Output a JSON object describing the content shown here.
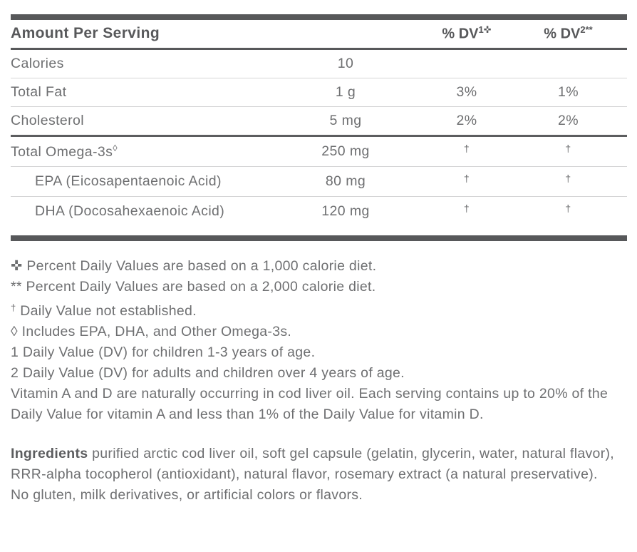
{
  "colors": {
    "bar": "#57585a",
    "heading_text": "#57585a",
    "body_text": "#6e6f71",
    "thin_rule": "#d4d4d5"
  },
  "table": {
    "header": {
      "amount_label": "Amount Per Serving",
      "dv1_label": "% DV",
      "dv1_sup": "1✜",
      "dv2_label": "% DV",
      "dv2_sup": "2**"
    },
    "rows": [
      {
        "name": "Calories",
        "sup": "",
        "amount": "10",
        "dv1": "",
        "dv2": "",
        "indent": false,
        "section": false
      },
      {
        "name": "Total Fat",
        "sup": "",
        "amount": "1 g",
        "dv1": "3%",
        "dv2": "1%",
        "indent": false,
        "section": false
      },
      {
        "name": "Cholesterol",
        "sup": "",
        "amount": "5 mg",
        "dv1": "2%",
        "dv2": "2%",
        "indent": false,
        "section": false
      },
      {
        "name": "Total Omega-3s",
        "sup": "◊",
        "amount": "250 mg",
        "dv1": "†",
        "dv2": "†",
        "indent": false,
        "section": true
      },
      {
        "name": "EPA (Eicosapentaenoic Acid)",
        "sup": "",
        "amount": "80 mg",
        "dv1": "†",
        "dv2": "†",
        "indent": true,
        "section": false
      },
      {
        "name": "DHA (Docosahexaenoic Acid)",
        "sup": "",
        "amount": "120 mg",
        "dv1": "†",
        "dv2": "†",
        "indent": true,
        "section": false
      }
    ],
    "dagger_symbol": "†"
  },
  "footnotes": [
    {
      "marker": "✜",
      "raised": false,
      "text": "Percent Daily Values are based on a 1,000 calorie diet."
    },
    {
      "marker": "**",
      "raised": false,
      "text": "Percent Daily Values are based on a 2,000 calorie diet."
    },
    {
      "marker": "†",
      "raised": true,
      "text": "Daily Value not established."
    },
    {
      "marker": "◊",
      "raised": false,
      "text": "Includes EPA, DHA, and Other Omega-3s."
    },
    {
      "marker": "1",
      "raised": false,
      "text": "Daily Value (DV) for children 1-3 years of age."
    },
    {
      "marker": "2",
      "raised": false,
      "text": "Daily Value (DV) for adults and children over 4 years of age."
    },
    {
      "marker": "",
      "raised": false,
      "text": "Vitamin A and D are naturally occurring in cod liver oil. Each serving contains up to 20% of the Daily Value for vitamin A and less than 1% of the Daily Value for vitamin D."
    }
  ],
  "ingredients": {
    "label": "Ingredients",
    "text": "purified arctic cod liver oil, soft gel capsule (gelatin, glycerin, water, natural flavor), RRR-alpha tocopherol (antioxidant), natural flavor, rosemary extract (a natural preservative).",
    "claims": "No gluten, milk derivatives, or artificial colors or flavors."
  }
}
